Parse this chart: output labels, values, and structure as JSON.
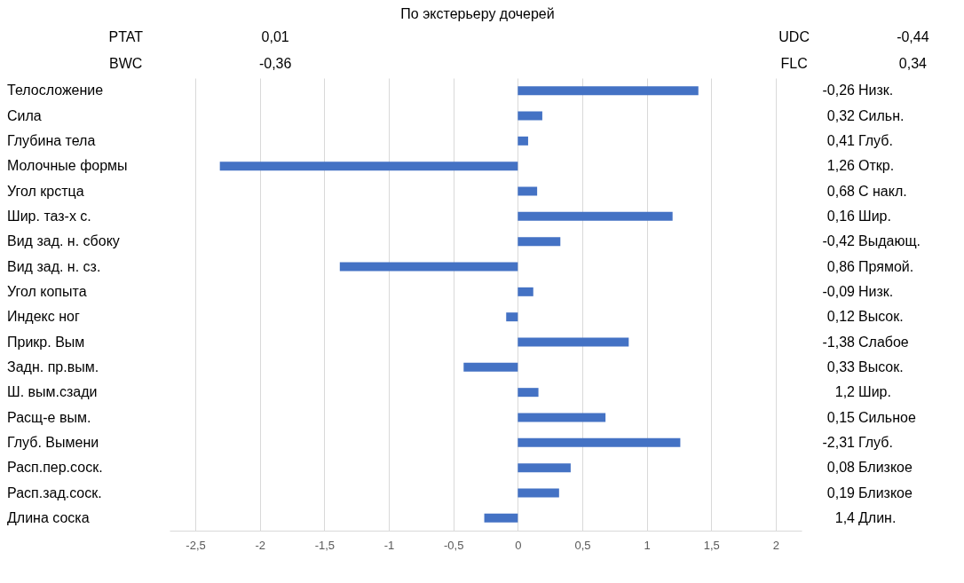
{
  "chart_data": {
    "type": "bar",
    "orientation": "horizontal",
    "title": "По экстерьеру дочерей",
    "categories": [
      "Телосложение",
      "Сила",
      "Глубина тела",
      "Молочные формы",
      "Угол крстца",
      "Шир. таз-х с.",
      "Вид зад. н. сбоку",
      "Вид зад. н. сз.",
      "Угол копыта",
      "Индекс ног",
      "Прикр. Вым",
      "Задн. пр.вым.",
      "Ш. вым.сзади",
      "Расщ-е вым.",
      "Глуб. Вымени",
      "Расп.пер.соск.",
      "Расп.зад.соск.",
      "Длина соска"
    ],
    "values": [
      1.4,
      0.19,
      0.08,
      -2.31,
      0.15,
      1.2,
      0.33,
      -1.38,
      0.12,
      -0.09,
      0.86,
      -0.42,
      0.16,
      0.68,
      1.26,
      0.41,
      0.32,
      -0.26
    ],
    "color": "#4472c4",
    "xlim": [
      -2.7,
      2.2
    ],
    "xticks": [
      {
        "value": -2.5,
        "label": "-2,5"
      },
      -2,
      {
        "value": -1.5,
        "label": "-1,5"
      },
      -1,
      {
        "value": -0.5,
        "label": "-0,5"
      },
      0,
      {
        "value": 0.5,
        "label": "0,5"
      },
      1,
      {
        "value": 1.5,
        "label": "1,5"
      },
      2
    ],
    "grid": "x",
    "annotations": [
      "PTAT",
      "0,01",
      "BWC",
      "-0,36",
      "UDC",
      "-0,44",
      "FLC",
      "0,34",
      "-0,26",
      "Низк.",
      "0,32",
      "Сильн.",
      "0,41",
      "Глуб.",
      "1,26",
      "Откр.",
      "0,68",
      "С накл.",
      "0,16",
      "Шир.",
      "-0,42",
      "Выдающ.",
      "0,86",
      "Прямой.",
      "-0,09",
      "Низк.",
      "0,12",
      "Высок.",
      "-1,38",
      "Слабое",
      "0,33",
      "Высок.",
      "1,2",
      "Шир.",
      "0,15",
      "Сильное",
      "-2,31",
      "Глуб.",
      "0,08",
      "Близкое",
      "0,19",
      "Близкое",
      "1,4",
      "Длин."
    ]
  }
}
